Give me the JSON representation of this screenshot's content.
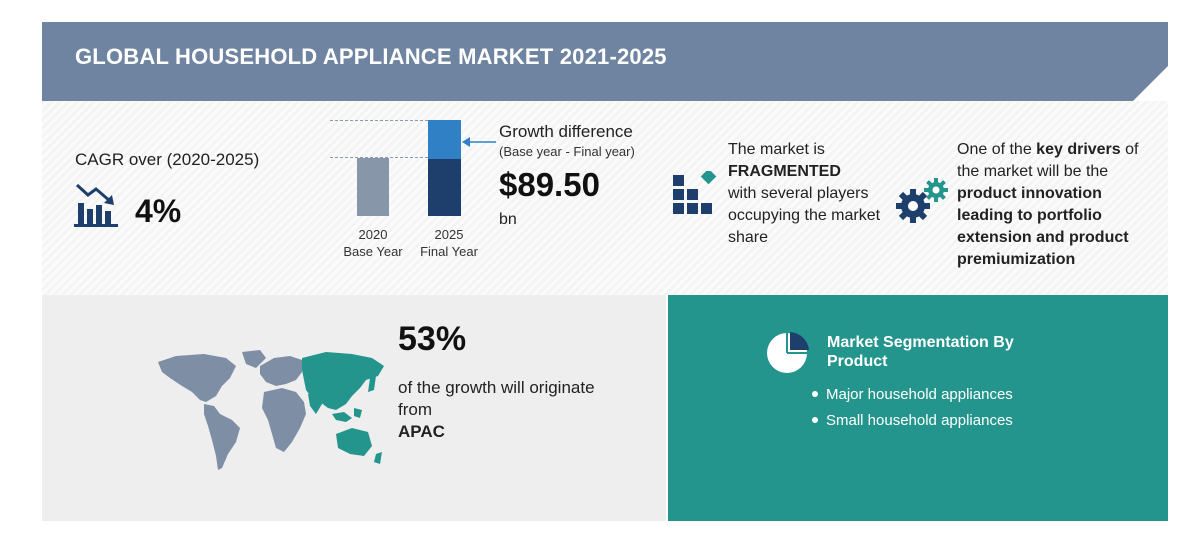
{
  "header": {
    "title": "GLOBAL HOUSEHOLD APPLIANCE MARKET 2021-2025"
  },
  "cagr": {
    "label": "CAGR over (2020-2025)",
    "value": "4%",
    "icon": "trend-down-chart-icon"
  },
  "growth_chart": {
    "bars": [
      {
        "year": "2020",
        "caption": "Base Year"
      },
      {
        "year": "2025",
        "caption": "Final Year"
      }
    ],
    "colors": {
      "base": "#8796a8",
      "final_top": "#2f80c4",
      "final_bottom": "#1e3f6b"
    }
  },
  "growth": {
    "title": "Growth difference",
    "subtitle": "(Base year - Final year)",
    "value": "$89.50",
    "unit": "bn"
  },
  "fragmented": {
    "line1": "The market is",
    "emphasis": "FRAGMENTED",
    "line3": "with several players occupying the market share",
    "icon": "blocks-icon"
  },
  "drivers": {
    "prefix": "One of the ",
    "emphasis": "key drivers",
    "middle": " of the market will be the ",
    "driver": "product innovation leading to portfolio extension and product premiumization",
    "icon": "gears-icon"
  },
  "region": {
    "value": "53%",
    "text": "of the growth will originate from",
    "name": "APAC",
    "icon": "world-map-icon"
  },
  "segmentation": {
    "title": "Market Segmentation By Product",
    "items": [
      "Major household appliances",
      "Small household appliances"
    ],
    "icon": "pie-chart-icon"
  },
  "colors": {
    "header": "#6e84a0",
    "teal": "#24958c",
    "navy": "#1e3f6b"
  }
}
